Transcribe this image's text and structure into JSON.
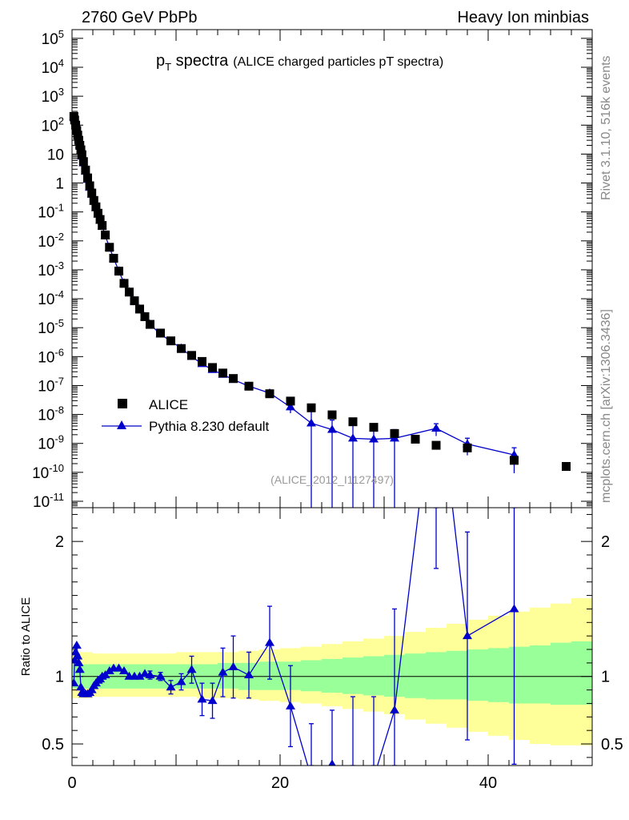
{
  "header": {
    "left": "2760 GeV PbPb",
    "right": "Heavy Ion minbias"
  },
  "title": {
    "main": "p",
    "sub": "T",
    "main2": " spectra",
    "desc": "(ALICE charged particles pT spectra)"
  },
  "side": {
    "rivet": "Rivet 3.1.10,  516k events",
    "mcplots": "mcplots.cern.ch [arXiv:1306.3436]"
  },
  "watermark": "(ALICE_2012_I1127497)",
  "ratio_ylabel": "Ratio to ALICE",
  "legend": {
    "data": "ALICE",
    "mc": "Pythia 8.230 default"
  },
  "colors": {
    "data": "#000000",
    "mc": "#0000cc",
    "band_inner": "#99ff99",
    "band_outer": "#ffff99"
  },
  "chart_data": [
    {
      "type": "scatter",
      "yscale": "log",
      "xlim": [
        0,
        50
      ],
      "ylim": [
        6e-12,
        200000.0
      ],
      "y_ticks": [
        {
          "e": 5,
          "t": "10^5"
        },
        {
          "e": 4,
          "t": "10^4"
        },
        {
          "e": 3,
          "t": "10^3"
        },
        {
          "e": 2,
          "t": "10^2"
        },
        {
          "e": 1,
          "t": "10"
        },
        {
          "e": 0,
          "t": "1"
        },
        {
          "e": -1,
          "t": "10^-1"
        },
        {
          "e": -2,
          "t": "10^-2"
        },
        {
          "e": -3,
          "t": "10^-3"
        },
        {
          "e": -4,
          "t": "10^-4"
        },
        {
          "e": -5,
          "t": "10^-5"
        },
        {
          "e": -6,
          "t": "10^-6"
        },
        {
          "e": -7,
          "t": "10^-7"
        },
        {
          "e": -8,
          "t": "10^-8"
        },
        {
          "e": -9,
          "t": "10^-9"
        },
        {
          "e": -10,
          "t": "10^-10"
        },
        {
          "e": -11,
          "t": "10^-11"
        }
      ],
      "legend_position": "lower-left",
      "series": [
        {
          "name": "ALICE",
          "marker": "square",
          "x": [
            0.18,
            0.25,
            0.35,
            0.45,
            0.55,
            0.65,
            0.75,
            0.85,
            0.95,
            1.1,
            1.3,
            1.5,
            1.7,
            1.9,
            2.1,
            2.3,
            2.5,
            2.7,
            2.9,
            3.2,
            3.6,
            4.0,
            4.5,
            5.0,
            5.5,
            6.0,
            6.5,
            7.0,
            7.5,
            8.5,
            9.5,
            10.5,
            11.5,
            12.5,
            13.5,
            14.5,
            15.5,
            17.0,
            19.0,
            21.0,
            23.0,
            25.0,
            27.0,
            29.0,
            31.0,
            33.0,
            35.0,
            38.0,
            42.5,
            47.5
          ],
          "y": [
            200,
            150,
            100,
            65,
            45,
            30,
            20,
            14,
            9.5,
            5.5,
            2.8,
            1.5,
            0.8,
            0.45,
            0.25,
            0.15,
            0.09,
            0.055,
            0.034,
            0.016,
            0.006,
            0.0025,
            0.0009,
            0.00034,
            0.00017,
            8.5e-05,
            4.4e-05,
            2.4e-05,
            1.3e-05,
            6.5e-06,
            3.5e-06,
            1.9e-06,
            1.1e-06,
            6.8e-07,
            4.2e-07,
            2.7e-07,
            1.75e-07,
            9.5e-08,
            5.2e-08,
            2.9e-08,
            1.7e-08,
            9.7e-09,
            5.6e-09,
            3.6e-09,
            2.2e-09,
            1.4e-09,
            8.6e-10,
            7e-10,
            2.6e-10,
            1.6e-10
          ]
        },
        {
          "name": "Pythia 8.230 default",
          "marker": "triangle",
          "x": [
            0.18,
            0.25,
            0.35,
            0.45,
            0.55,
            0.65,
            0.75,
            0.85,
            0.95,
            1.1,
            1.3,
            1.5,
            1.7,
            1.9,
            2.1,
            2.3,
            2.5,
            2.7,
            2.9,
            3.2,
            3.6,
            4.0,
            4.5,
            5.0,
            5.5,
            6.0,
            6.5,
            7.0,
            7.5,
            8.5,
            9.5,
            10.5,
            11.5,
            12.5,
            13.5,
            14.5,
            15.5,
            17.0,
            19.0,
            21.0,
            23.0,
            25.0,
            27.0,
            29.0,
            31.0,
            35.0,
            38.0,
            42.5
          ],
          "y": [
            190,
            170,
            120,
            80,
            52,
            33,
            21,
            13,
            8.4,
            4.9,
            2.5,
            1.31,
            0.7,
            0.4,
            0.23,
            0.14,
            0.084,
            0.051,
            0.032,
            0.015,
            0.006,
            0.0025,
            0.00091,
            0.00035,
            0.000172,
            8.6e-05,
            4.4e-05,
            2.4e-05,
            1.3e-05,
            6e-06,
            3.4e-06,
            1.95e-06,
            1e-06,
            5.6e-07,
            3.5e-07,
            2.4e-07,
            1.6e-07,
            9.5e-08,
            5.5e-08,
            1.8e-08,
            5e-09,
            3e-09,
            1.5e-09,
            1.4e-09,
            1.5e-09,
            3.3e-09,
            9.5e-10,
            4e-10
          ]
        }
      ]
    },
    {
      "type": "line",
      "ylabel": "Ratio to ALICE",
      "xlim": [
        0,
        50
      ],
      "ylim": [
        0.34,
        2.25
      ],
      "x_ticks": [
        0,
        20,
        40
      ],
      "y_ticks": [
        0.5,
        1,
        2
      ],
      "reference": 1,
      "bands": {
        "x": [
          0,
          2,
          4,
          6,
          8,
          10,
          12,
          14,
          16,
          18,
          20,
          22,
          24,
          26,
          28,
          30,
          32,
          34,
          36,
          38,
          40,
          42,
          44,
          46,
          48,
          50
        ],
        "inner_lo": [
          0.91,
          0.91,
          0.91,
          0.91,
          0.91,
          0.91,
          0.91,
          0.91,
          0.9,
          0.9,
          0.9,
          0.89,
          0.88,
          0.87,
          0.86,
          0.85,
          0.84,
          0.83,
          0.83,
          0.82,
          0.81,
          0.8,
          0.8,
          0.79,
          0.79
        ],
        "inner_hi": [
          1.09,
          1.09,
          1.09,
          1.09,
          1.09,
          1.09,
          1.09,
          1.1,
          1.1,
          1.11,
          1.11,
          1.12,
          1.13,
          1.14,
          1.15,
          1.16,
          1.17,
          1.18,
          1.19,
          1.2,
          1.21,
          1.22,
          1.23,
          1.25,
          1.26
        ],
        "outer_lo": [
          0.84,
          0.85,
          0.85,
          0.85,
          0.85,
          0.85,
          0.84,
          0.84,
          0.83,
          0.82,
          0.81,
          0.8,
          0.78,
          0.76,
          0.74,
          0.72,
          0.68,
          0.65,
          0.62,
          0.59,
          0.56,
          0.53,
          0.5,
          0.49,
          0.49
        ],
        "outer_hi": [
          1.18,
          1.17,
          1.17,
          1.17,
          1.17,
          1.18,
          1.18,
          1.18,
          1.19,
          1.2,
          1.21,
          1.22,
          1.24,
          1.26,
          1.28,
          1.3,
          1.33,
          1.36,
          1.39,
          1.42,
          1.45,
          1.48,
          1.51,
          1.54,
          1.58
        ]
      },
      "series": [
        {
          "name": "Pythia 8.230 default",
          "marker": "triangle",
          "x": [
            0.18,
            0.25,
            0.35,
            0.45,
            0.55,
            0.65,
            0.75,
            0.85,
            0.95,
            1.1,
            1.3,
            1.5,
            1.7,
            1.9,
            2.1,
            2.3,
            2.5,
            2.7,
            2.9,
            3.2,
            3.6,
            4.0,
            4.5,
            5.0,
            5.5,
            6.0,
            6.5,
            7.0,
            7.5,
            8.5,
            9.5,
            10.5,
            11.5,
            12.5,
            13.5,
            14.5,
            15.5,
            17.0,
            19.0,
            21.0,
            23.0,
            25.0,
            27.0,
            29.0,
            31.0,
            35.0,
            38.0,
            42.5
          ],
          "y": [
            0.95,
            1.12,
            1.18,
            1.23,
            1.15,
            1.1,
            1.05,
            0.92,
            0.88,
            0.87,
            0.87,
            0.87,
            0.88,
            0.9,
            0.93,
            0.95,
            0.97,
            0.98,
            1.0,
            1.01,
            1.04,
            1.06,
            1.06,
            1.04,
            1.0,
            1.0,
            1.0,
            1.02,
            1.01,
            1.0,
            0.92,
            0.96,
            1.05,
            0.83,
            0.82,
            1.03,
            1.07,
            1.01,
            1.25,
            0.78,
            0.25,
            0.35,
            0.25,
            0.25,
            0.75,
            3.3,
            1.3,
            1.5
          ],
          "err": [
            0.01,
            0.01,
            0.01,
            0.01,
            0.01,
            0.01,
            0.01,
            0.01,
            0.01,
            0.01,
            0.01,
            0.01,
            0.01,
            0.01,
            0.01,
            0.01,
            0.01,
            0.01,
            0.01,
            0.01,
            0.01,
            0.01,
            0.01,
            0.01,
            0.02,
            0.02,
            0.02,
            0.02,
            0.03,
            0.03,
            0.05,
            0.06,
            0.1,
            0.12,
            0.13,
            0.18,
            0.23,
            0.17,
            0.27,
            0.3,
            0.4,
            0.4,
            0.6,
            0.6,
            0.75,
            1.5,
            0.77,
            1.15
          ]
        }
      ]
    }
  ]
}
